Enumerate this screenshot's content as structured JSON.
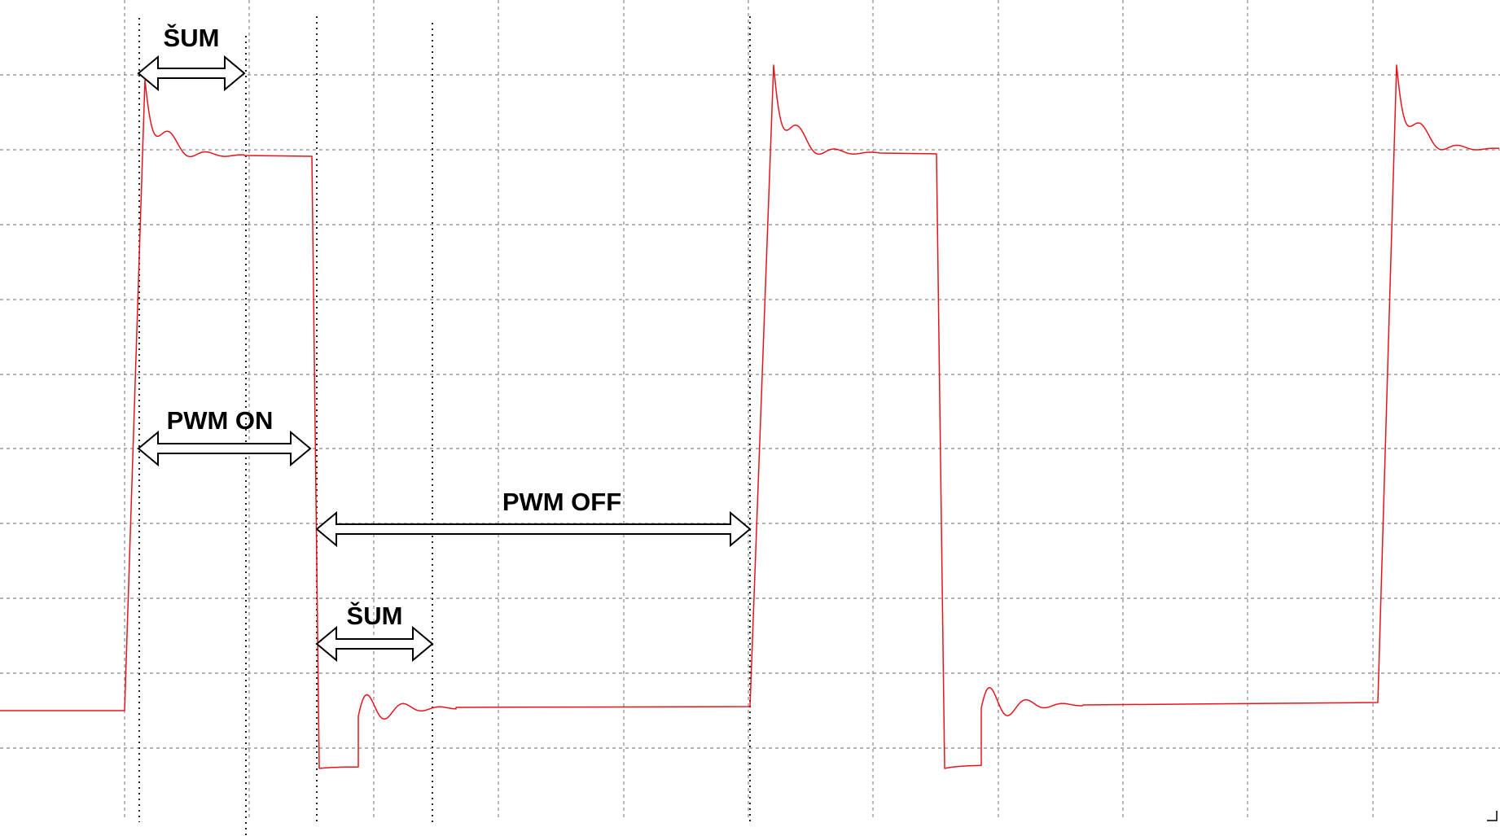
{
  "labels": {
    "sum_top": "ŠUM",
    "pwm_on": "PWM ON",
    "pwm_off": "PWM OFF",
    "sum_bottom": "ŠUM"
  },
  "colors": {
    "background": "#ffffff",
    "grid": "#888888",
    "signal": "#e8141c",
    "annotation": "#000000"
  }
}
